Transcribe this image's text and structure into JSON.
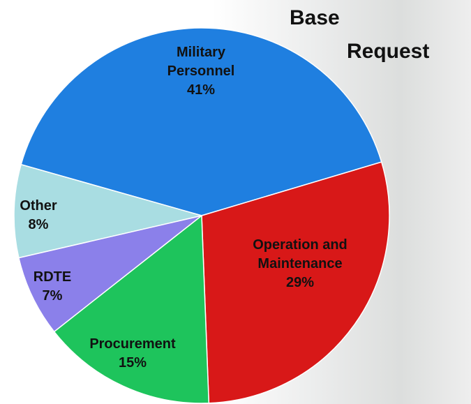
{
  "chart_data": {
    "type": "pie",
    "title": "Base Request",
    "categories": [
      "Military Personnel",
      "Operation and Maintenance",
      "Procurement",
      "RDTE",
      "Other"
    ],
    "values": [
      41,
      29,
      15,
      7,
      8
    ],
    "value_labels": [
      "41%",
      "29%",
      "15%",
      "7%",
      "8%"
    ],
    "colors": [
      "#1f7fe0",
      "#d81818",
      "#1ec45c",
      "#8b80ea",
      "#a9dde2"
    ]
  }
}
